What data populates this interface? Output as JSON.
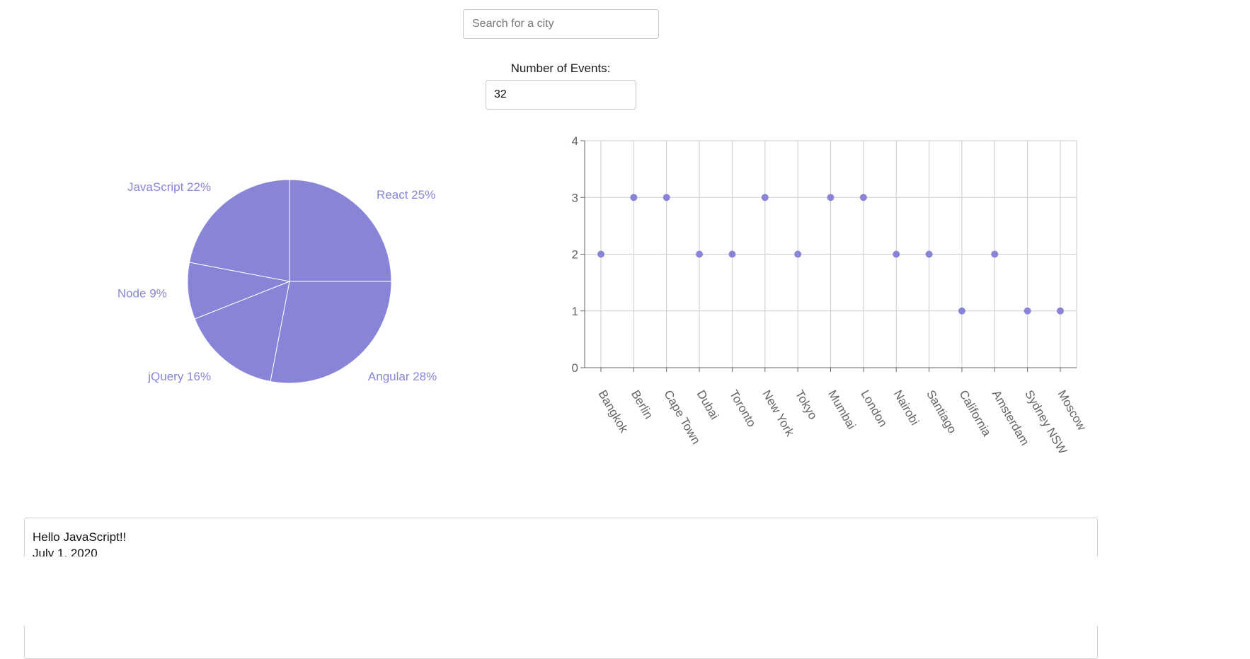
{
  "search": {
    "placeholder": "Search for a city",
    "value": ""
  },
  "events": {
    "label": "Number of Events:",
    "value": "32"
  },
  "colors": {
    "accent": "#8884d8",
    "grid": "#cccccc",
    "axis": "#666666"
  },
  "chart_data": [
    {
      "type": "pie",
      "slices": [
        {
          "name": "React",
          "value": 25,
          "label": "React 25%"
        },
        {
          "name": "Angular",
          "value": 28,
          "label": "Angular 28%"
        },
        {
          "name": "jQuery",
          "value": 16,
          "label": "jQuery 16%"
        },
        {
          "name": "Node",
          "value": 9,
          "label": "Node 9%"
        },
        {
          "name": "JavaScript",
          "value": 22,
          "label": "JavaScript 22%"
        }
      ]
    },
    {
      "type": "scatter",
      "categories": [
        "Bangkok",
        "Berlin",
        "Cape Town",
        "Dubai",
        "Toronto",
        "New York",
        "Tokyo",
        "Mumbai",
        "London",
        "Nairobi",
        "Santiago",
        "California",
        "Amsterdam",
        "Sydney NSW",
        "Moscow"
      ],
      "values": [
        2,
        3,
        3,
        2,
        2,
        3,
        2,
        3,
        3,
        2,
        2,
        1,
        2,
        1,
        1
      ],
      "ylim": [
        0,
        4
      ],
      "yticks": [
        0,
        1,
        2,
        3,
        4
      ],
      "grid": true,
      "xlabel": "",
      "ylabel": ""
    }
  ],
  "event_card": {
    "title": "Hello JavaScript!!",
    "date": "July 1, 2020"
  }
}
